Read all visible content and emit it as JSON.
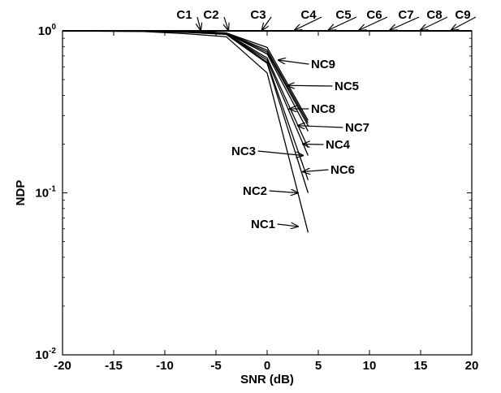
{
  "chart_data": {
    "type": "line",
    "title": "",
    "xlabel": "SNR (dB)",
    "ylabel": "NDP",
    "xlim": [
      -20,
      20
    ],
    "ylim": [
      0.01,
      1
    ],
    "yscale": "log",
    "grid": false,
    "x_ticks": [
      -20,
      -15,
      -10,
      -5,
      0,
      5,
      10,
      15,
      20
    ],
    "x_tick_labels": [
      "-20",
      "-15",
      "-10",
      "-5",
      "0",
      "5",
      "10",
      "15",
      "20"
    ],
    "y_ticks": [
      {
        "value": 1,
        "base": "10",
        "exp": "0"
      },
      {
        "value": 0.1,
        "base": "10",
        "exp": "-1"
      },
      {
        "value": 0.01,
        "base": "10",
        "exp": "-2"
      }
    ],
    "series": [
      {
        "name": "C1",
        "x": [
          -20,
          -4,
          0,
          4,
          20
        ],
        "y": [
          1,
          1,
          1,
          1,
          1
        ]
      },
      {
        "name": "C2",
        "x": [
          -20,
          -4,
          0,
          4,
          20
        ],
        "y": [
          1,
          1,
          1,
          1,
          1
        ]
      },
      {
        "name": "C3",
        "x": [
          -20,
          -4,
          0,
          4,
          20
        ],
        "y": [
          1,
          1,
          1,
          1,
          1
        ]
      },
      {
        "name": "C4",
        "x": [
          -20,
          -4,
          0,
          4,
          20
        ],
        "y": [
          1,
          1,
          1,
          1,
          1
        ]
      },
      {
        "name": "C5",
        "x": [
          -20,
          -4,
          0,
          4,
          20
        ],
        "y": [
          1,
          1,
          1,
          1,
          1
        ]
      },
      {
        "name": "C6",
        "x": [
          -20,
          -4,
          0,
          4,
          20
        ],
        "y": [
          1,
          1,
          1,
          1,
          1
        ]
      },
      {
        "name": "C7",
        "x": [
          -20,
          -4,
          0,
          4,
          20
        ],
        "y": [
          1,
          1,
          1,
          1,
          1
        ]
      },
      {
        "name": "C8",
        "x": [
          -20,
          -4,
          0,
          4,
          20
        ],
        "y": [
          1,
          1,
          1,
          1,
          1
        ]
      },
      {
        "name": "C9",
        "x": [
          -20,
          -4,
          0,
          4,
          20
        ],
        "y": [
          1,
          1,
          1,
          1,
          1
        ]
      },
      {
        "name": "NC1",
        "x": [
          -20,
          -12,
          -8,
          -4,
          0,
          4
        ],
        "y": [
          1,
          0.99,
          0.96,
          0.92,
          0.55,
          0.057
        ]
      },
      {
        "name": "NC2",
        "x": [
          -20,
          -12,
          -8,
          -4,
          0,
          4
        ],
        "y": [
          1,
          0.995,
          0.98,
          0.95,
          0.63,
          0.1
        ]
      },
      {
        "name": "NC3",
        "x": [
          -20,
          -12,
          -8,
          -4,
          0,
          4
        ],
        "y": [
          1,
          0.997,
          0.99,
          0.96,
          0.66,
          0.17
        ]
      },
      {
        "name": "NC4",
        "x": [
          -20,
          -12,
          -8,
          -4,
          0,
          4
        ],
        "y": [
          1,
          0.998,
          0.99,
          0.965,
          0.68,
          0.19
        ]
      },
      {
        "name": "NC5",
        "x": [
          -20,
          -12,
          -8,
          -4,
          0,
          4
        ],
        "y": [
          1,
          0.998,
          0.995,
          0.97,
          0.76,
          0.27
        ]
      },
      {
        "name": "NC6",
        "x": [
          -20,
          -12,
          -8,
          -4,
          0,
          4
        ],
        "y": [
          1,
          0.998,
          0.99,
          0.962,
          0.64,
          0.12
        ]
      },
      {
        "name": "NC7",
        "x": [
          -20,
          -12,
          -8,
          -4,
          0,
          4
        ],
        "y": [
          1,
          0.998,
          0.993,
          0.968,
          0.72,
          0.24
        ]
      },
      {
        "name": "NC8",
        "x": [
          -20,
          -12,
          -8,
          -4,
          0,
          4
        ],
        "y": [
          1,
          0.998,
          0.994,
          0.97,
          0.74,
          0.26
        ]
      },
      {
        "name": "NC9",
        "x": [
          -20,
          -12,
          -8,
          -4,
          0,
          4
        ],
        "y": [
          1,
          0.998,
          0.995,
          0.972,
          0.79,
          0.28
        ]
      }
    ],
    "annotations": [
      {
        "text": "C1",
        "target": [
          -6.5,
          1
        ]
      },
      {
        "text": "C2",
        "target": [
          -3.8,
          1
        ]
      },
      {
        "text": "C3",
        "target": [
          -0.5,
          1
        ]
      },
      {
        "text": "C4",
        "target": [
          2.7,
          1
        ]
      },
      {
        "text": "C5",
        "target": [
          6,
          1
        ]
      },
      {
        "text": "C6",
        "target": [
          9,
          1
        ]
      },
      {
        "text": "C7",
        "target": [
          12,
          1
        ]
      },
      {
        "text": "C8",
        "target": [
          15,
          1
        ]
      },
      {
        "text": "C9",
        "target": [
          18,
          1
        ]
      },
      {
        "text": "NC9",
        "target": [
          1.1,
          0.66
        ]
      },
      {
        "text": "NC5",
        "target": [
          2,
          0.46
        ]
      },
      {
        "text": "NC8",
        "target": [
          2.2,
          0.33
        ]
      },
      {
        "text": "NC7",
        "target": [
          3,
          0.26
        ]
      },
      {
        "text": "NC4",
        "target": [
          3.5,
          0.2
        ]
      },
      {
        "text": "NC3",
        "target": [
          3.5,
          0.17
        ]
      },
      {
        "text": "NC6",
        "target": [
          3.5,
          0.135
        ]
      },
      {
        "text": "NC2",
        "target": [
          3,
          0.1
        ]
      },
      {
        "text": "NC1",
        "target": [
          3,
          0.062
        ]
      }
    ]
  }
}
